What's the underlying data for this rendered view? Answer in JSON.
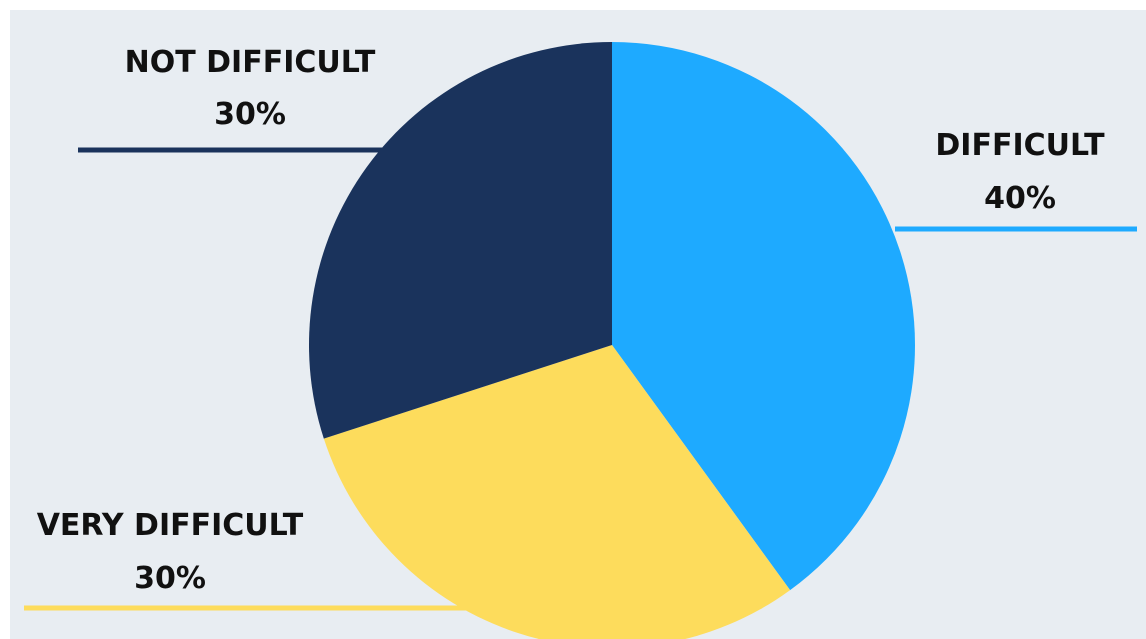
{
  "colors": {
    "background": "#ffffff",
    "panel": "#e8edf2",
    "difficult": "#1eaaff",
    "very_difficult": "#fddc5c",
    "not_difficult": "#1a335c",
    "label_text": "#111111"
  },
  "chart_data": {
    "type": "pie",
    "start_angle_deg": 0,
    "direction": "clockwise",
    "slices": [
      {
        "label": "DIFFICULT",
        "value": 40,
        "value_label": "40%",
        "color": "#1eaaff"
      },
      {
        "label": "VERY DIFFICULT",
        "value": 30,
        "value_label": "30%",
        "color": "#fddc5c"
      },
      {
        "label": "NOT DIFFICULT",
        "value": 30,
        "value_label": "30%",
        "color": "#1a335c"
      }
    ]
  }
}
